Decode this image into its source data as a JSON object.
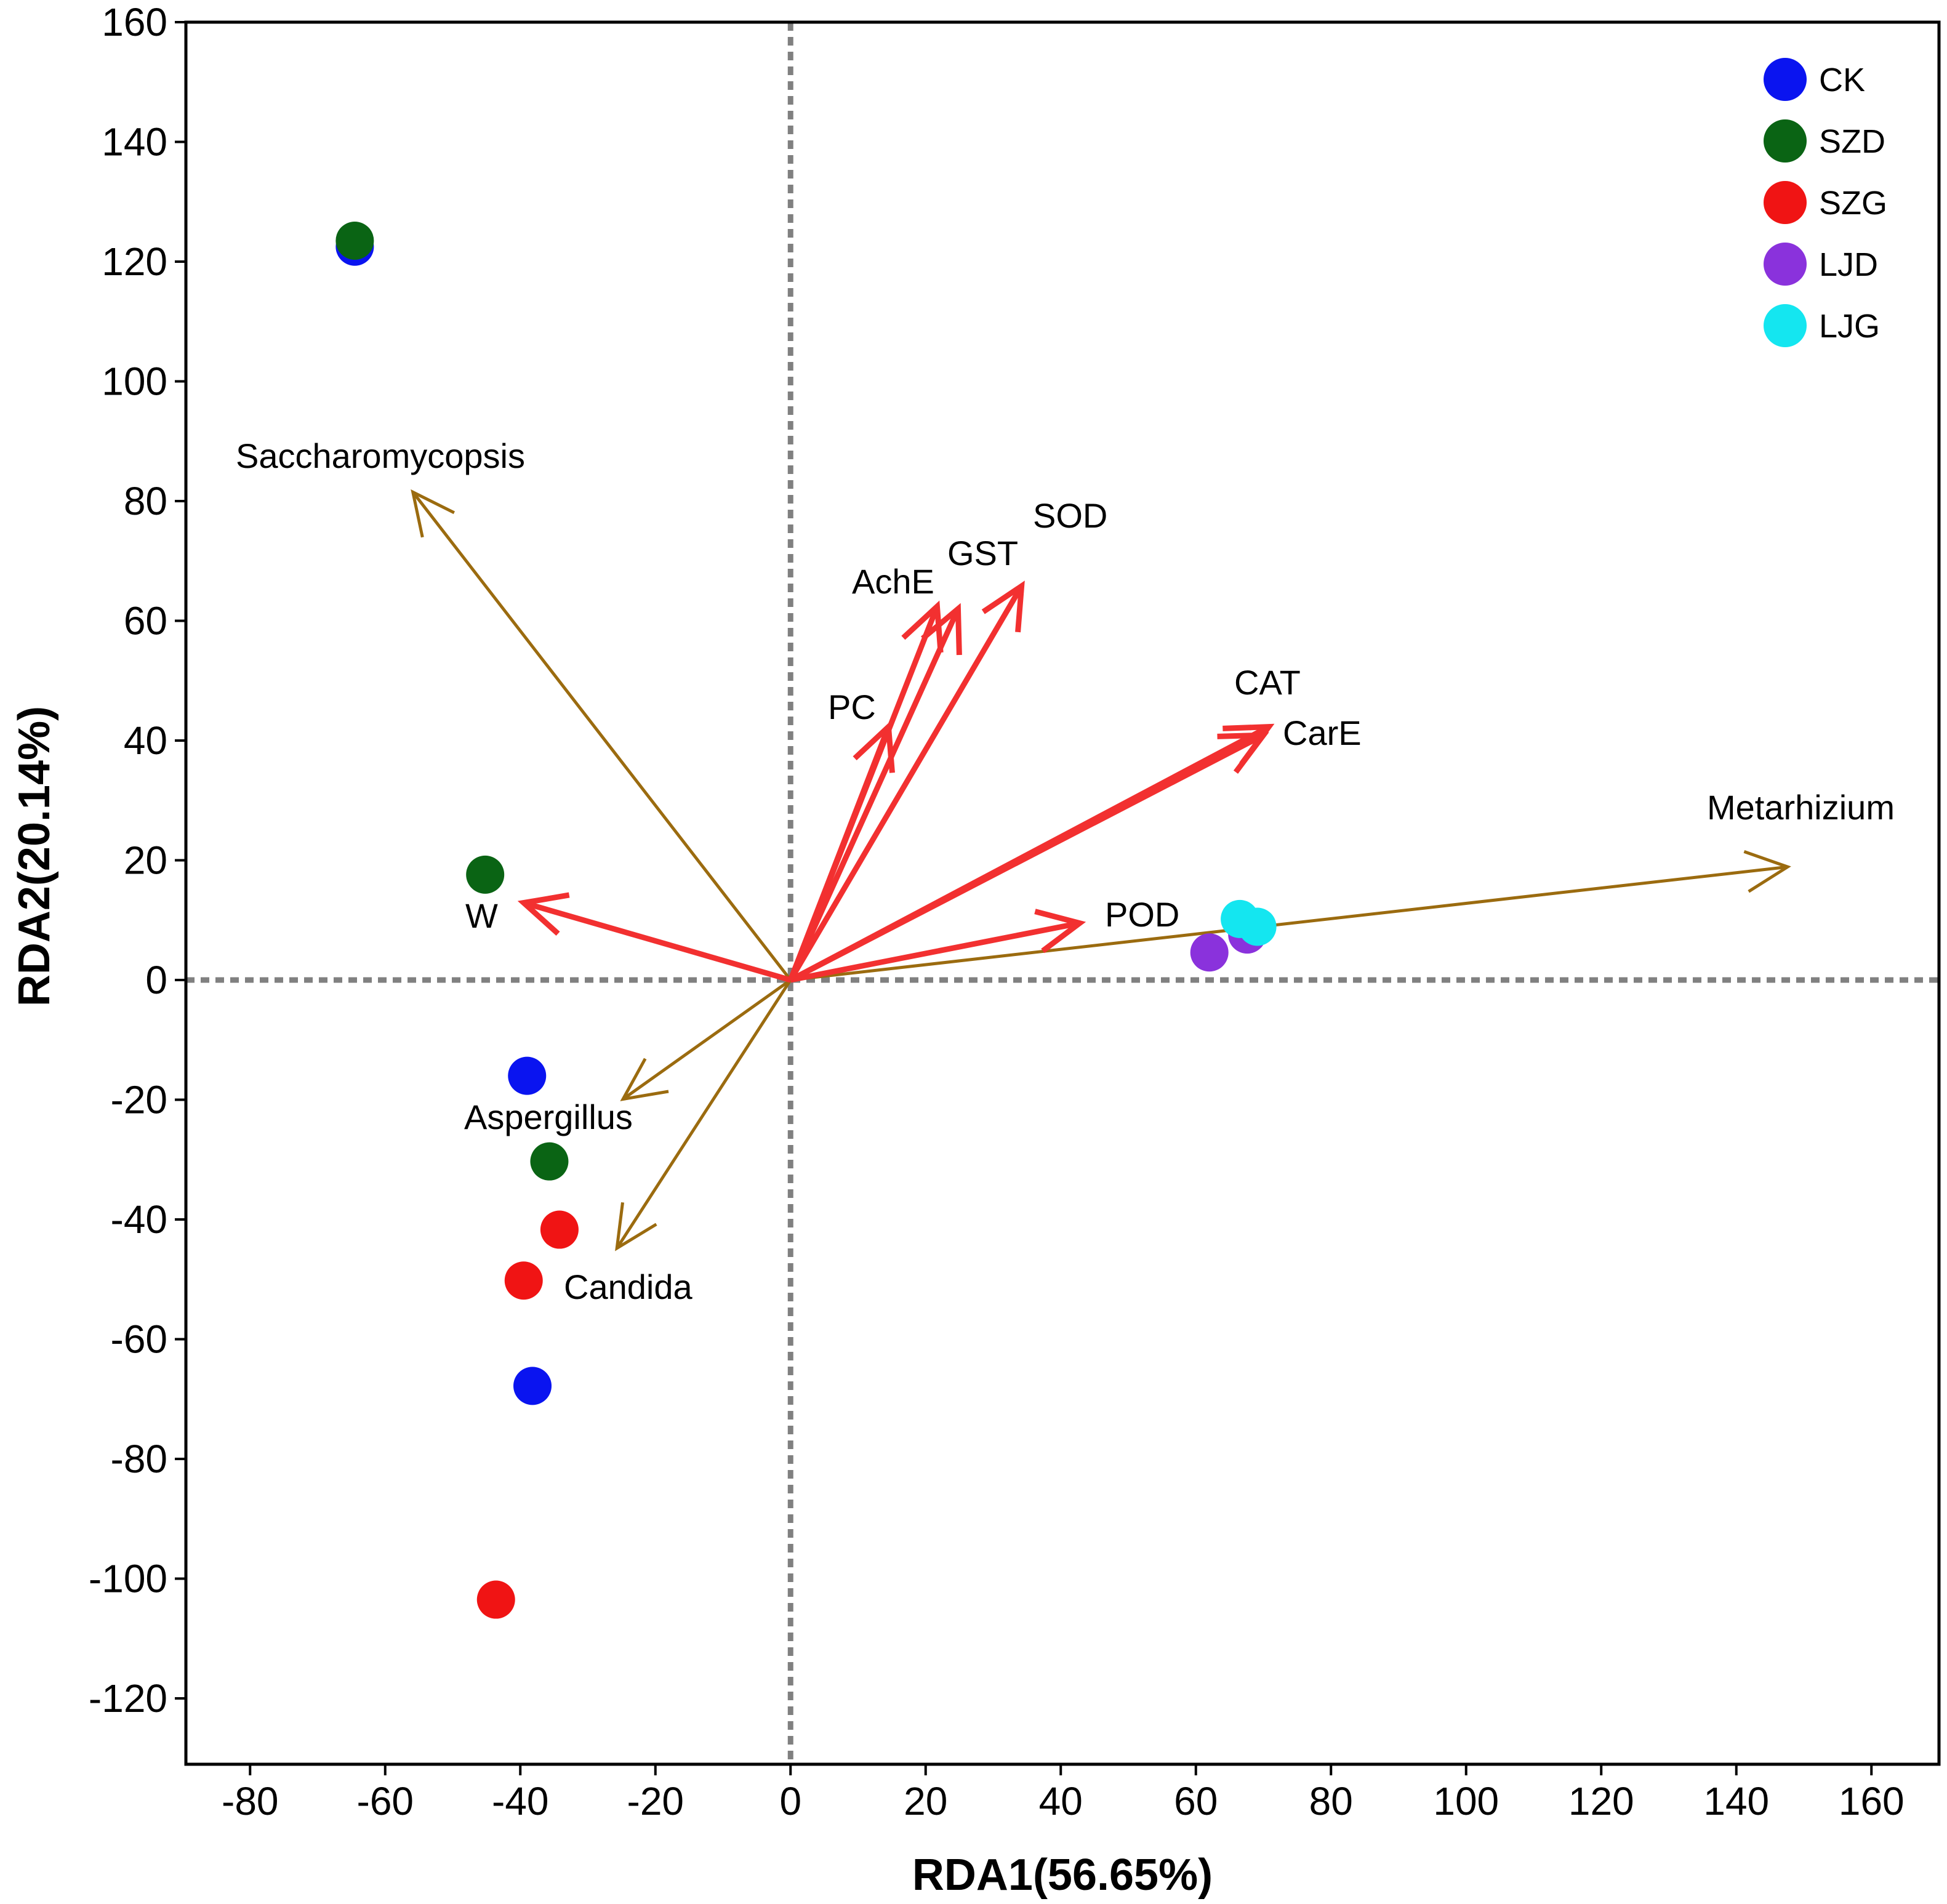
{
  "chart_data": {
    "type": "scatter",
    "title": "",
    "xlabel": "RDA1(56.65%)",
    "ylabel": "RDA2(20.14%)",
    "xlim": [
      -89.5,
      170
    ],
    "ylim": [
      -131,
      160
    ],
    "xticks": [
      -80,
      -60,
      -40,
      -20,
      0,
      20,
      40,
      60,
      80,
      100,
      120,
      140,
      160
    ],
    "yticks": [
      -120,
      -100,
      -80,
      -60,
      -40,
      -20,
      0,
      20,
      40,
      60,
      80,
      100,
      120,
      140,
      160
    ],
    "grid": false,
    "legend_position": "top-right",
    "series": [
      {
        "name": "CK",
        "color": "#0a14f0",
        "points": [
          [
            -64.5,
            122.5
          ],
          [
            -39,
            -16
          ],
          [
            -38.2,
            -67.8
          ],
          [
            67.8,
            8
          ]
        ]
      },
      {
        "name": "SZD",
        "color": "#0a6414",
        "points": [
          [
            -64.5,
            123.5
          ],
          [
            -45.2,
            17.6
          ],
          [
            -35.7,
            -30.3
          ]
        ]
      },
      {
        "name": "SZG",
        "color": "#f01414",
        "points": [
          [
            -34.2,
            -41.7
          ],
          [
            -39.5,
            -50.2
          ],
          [
            -43.6,
            -103.5
          ]
        ]
      },
      {
        "name": "LJD",
        "color": "#8a32dc",
        "points": [
          [
            62,
            4.6
          ],
          [
            67.6,
            7.6
          ]
        ]
      },
      {
        "name": "LJG",
        "color": "#14e6f0",
        "points": [
          [
            66.5,
            10.2
          ],
          [
            69.1,
            8.9
          ]
        ]
      }
    ],
    "arrows": [
      {
        "name": "Saccharomycopsis",
        "group": "fungi",
        "x": -55.9,
        "y": 81.5
      },
      {
        "name": "Aspergillus",
        "group": "fungi",
        "x": -24.8,
        "y": -19.9
      },
      {
        "name": "Candida",
        "group": "fungi",
        "x": -25.7,
        "y": -44.8
      },
      {
        "name": "Metarhizium",
        "group": "fungi",
        "x": 147.6,
        "y": 18.9
      },
      {
        "name": "W",
        "group": "enzyme",
        "x": -39.5,
        "y": 12.9
      },
      {
        "name": "POD",
        "group": "enzyme",
        "x": 42.8,
        "y": 9.5
      },
      {
        "name": "CAT",
        "group": "enzyme",
        "x": 70.8,
        "y": 42.3
      },
      {
        "name": "CarE",
        "group": "enzyme",
        "x": 70,
        "y": 40.9
      },
      {
        "name": "SOD",
        "group": "enzyme",
        "x": 34.2,
        "y": 65.8
      },
      {
        "name": "GST",
        "group": "enzyme",
        "x": 24.8,
        "y": 62
      },
      {
        "name": "AchE",
        "group": "enzyme",
        "x": 21.7,
        "y": 62.4
      },
      {
        "name": "PC",
        "group": "enzyme",
        "x": 14.5,
        "y": 42.3
      }
    ],
    "arrow_colors": {
      "fungi": "#9b6b0f",
      "enzyme": "#f23030"
    }
  }
}
